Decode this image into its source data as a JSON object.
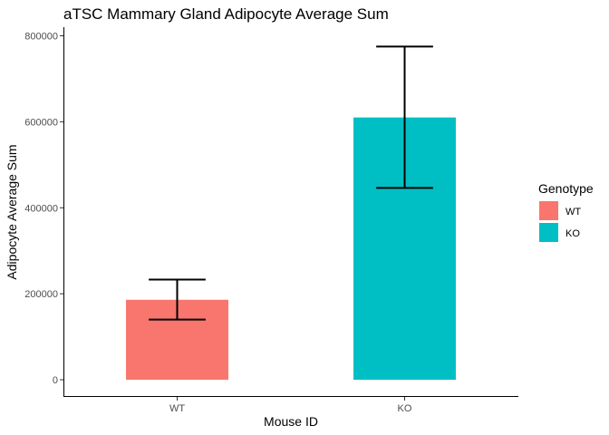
{
  "chart_data": {
    "type": "bar",
    "title": "aTSC Mammary Gland Adipocyte Average Sum",
    "xlabel": "Mouse ID",
    "ylabel": "Adipocyte Average Sum",
    "categories": [
      "WT",
      "KO"
    ],
    "values": [
      186000,
      610000
    ],
    "error_low": [
      140000,
      446000
    ],
    "error_high": [
      233000,
      775000
    ],
    "colors": [
      "#F8766D",
      "#00BFC4"
    ],
    "ylim": [
      -40000,
      820000
    ],
    "yticks": [
      0,
      200000,
      400000,
      600000,
      800000
    ],
    "ytick_labels": [
      "0",
      "200000",
      "400000",
      "600000",
      "800000"
    ],
    "grid": false,
    "legend": {
      "title": "Genotype",
      "position": "right",
      "entries": [
        "WT",
        "KO"
      ]
    }
  }
}
